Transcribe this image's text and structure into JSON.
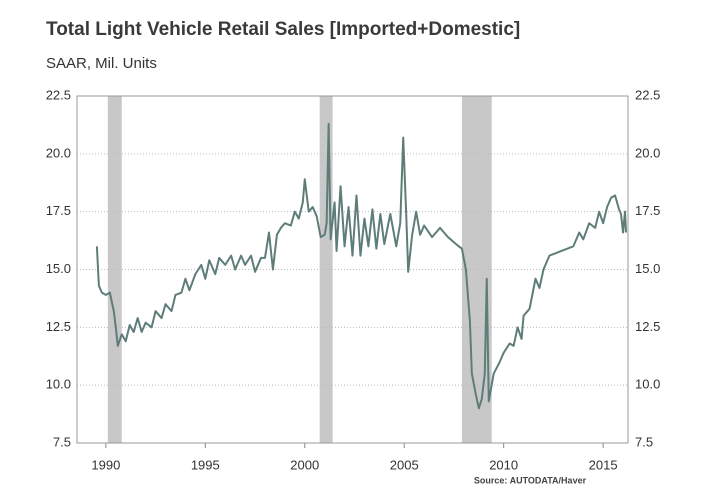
{
  "chart_data": {
    "type": "line",
    "title": "Total Light Vehicle Retail Sales [Imported+Domestic]",
    "subtitle": "SAAR, Mil. Units",
    "source": "Source: AUTODATA/Haver",
    "color": "#5e7d78",
    "recession_color": "#c8c8c8",
    "grid": true,
    "xlim": [
      1988.55,
      2016.25
    ],
    "ylim": [
      7.5,
      22.5
    ],
    "xticks": [
      1990,
      1995,
      2000,
      2005,
      2010,
      2015
    ],
    "yticks": [
      {
        "value": 7.5,
        "label": "7.5"
      },
      {
        "value": 10,
        "label": "10.0"
      },
      12.5,
      {
        "value": 15,
        "label": "15.0"
      },
      17.5,
      {
        "value": 20,
        "label": "20.0"
      },
      22.5
    ],
    "recessions": [
      [
        1990.1,
        1990.8
      ],
      [
        2000.75,
        2001.4
      ],
      [
        2007.9,
        2009.4
      ]
    ],
    "x": [
      1989.55,
      1989.65,
      1989.8,
      1990.0,
      1990.2,
      1990.4,
      1990.5,
      1990.6,
      1990.8,
      1991.0,
      1991.2,
      1991.4,
      1991.6,
      1991.8,
      1992.0,
      1992.3,
      1992.5,
      1992.8,
      1993.0,
      1993.3,
      1993.5,
      1993.8,
      1994.0,
      1994.2,
      1994.5,
      1994.8,
      1995.0,
      1995.2,
      1995.5,
      1995.7,
      1996.0,
      1996.3,
      1996.5,
      1996.8,
      1997.0,
      1997.3,
      1997.5,
      1997.8,
      1998.0,
      1998.2,
      1998.4,
      1998.6,
      1998.8,
      1999.0,
      1999.3,
      1999.5,
      1999.7,
      1999.9,
      2000.0,
      2000.2,
      2000.4,
      2000.6,
      2000.8,
      2001.0,
      2001.1,
      2001.2,
      2001.3,
      2001.5,
      2001.6,
      2001.8,
      2002.0,
      2002.2,
      2002.4,
      2002.6,
      2002.8,
      2003.0,
      2003.2,
      2003.4,
      2003.6,
      2003.8,
      2004.0,
      2004.3,
      2004.6,
      2004.8,
      2004.95,
      2005.1,
      2005.2,
      2005.4,
      2005.6,
      2005.8,
      2006.0,
      2006.4,
      2006.8,
      2007.2,
      2007.6,
      2007.9,
      2008.1,
      2008.3,
      2008.4,
      2008.6,
      2008.75,
      2008.9,
      2009.05,
      2009.15,
      2009.25,
      2009.5,
      2009.8,
      2010.0,
      2010.3,
      2010.5,
      2010.7,
      2010.9,
      2011.0,
      2011.3,
      2011.6,
      2011.8,
      2012.0,
      2012.3,
      2012.6,
      2012.9,
      2013.2,
      2013.5,
      2013.8,
      2014.0,
      2014.3,
      2014.6,
      2014.8,
      2015.0,
      2015.2,
      2015.4,
      2015.6,
      2015.8,
      2015.9,
      2016.0,
      2016.1,
      2016.15
    ],
    "series": [
      {
        "name": "Total Light Vehicle Retail Sales",
        "values": [
          16.0,
          14.3,
          14.0,
          13.9,
          14.0,
          13.2,
          12.5,
          11.7,
          12.2,
          11.9,
          12.6,
          12.3,
          12.9,
          12.3,
          12.7,
          12.5,
          13.2,
          12.9,
          13.5,
          13.2,
          13.9,
          14.0,
          14.6,
          14.1,
          14.8,
          15.2,
          14.6,
          15.4,
          14.8,
          15.5,
          15.2,
          15.6,
          15.0,
          15.6,
          15.2,
          15.6,
          14.9,
          15.5,
          15.5,
          16.6,
          15.0,
          16.5,
          16.8,
          17.0,
          16.9,
          17.5,
          17.2,
          17.9,
          18.9,
          17.5,
          17.7,
          17.3,
          16.4,
          16.5,
          17.0,
          21.3,
          16.3,
          17.9,
          15.8,
          18.6,
          16.0,
          17.7,
          15.6,
          18.2,
          15.6,
          17.2,
          16.0,
          17.6,
          15.9,
          17.4,
          16.1,
          17.4,
          16.0,
          17.0,
          20.7,
          17.4,
          14.9,
          16.5,
          17.5,
          16.5,
          16.9,
          16.4,
          16.8,
          16.4,
          16.1,
          15.9,
          15.0,
          12.8,
          10.5,
          9.6,
          9.0,
          9.4,
          10.5,
          14.6,
          9.3,
          10.5,
          11.0,
          11.4,
          11.8,
          11.7,
          12.5,
          12.0,
          13.0,
          13.3,
          14.6,
          14.2,
          15.0,
          15.6,
          15.7,
          15.8,
          15.9,
          16.0,
          16.6,
          16.3,
          17.0,
          16.8,
          17.5,
          17.0,
          17.7,
          18.1,
          18.2,
          17.6,
          17.4,
          16.6,
          17.5,
          16.6
        ]
      }
    ]
  }
}
